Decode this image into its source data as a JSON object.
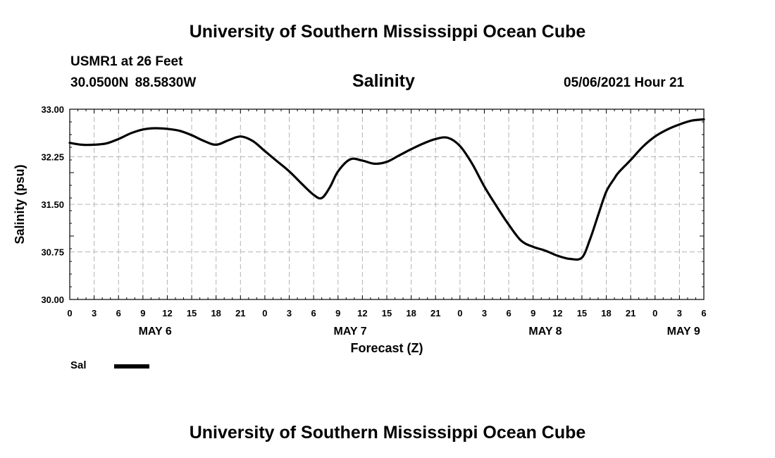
{
  "header": {
    "org_title": "University of Southern Mississippi Ocean Cube",
    "station": "USMR1 at 26 Feet",
    "coordinates": "30.0500N  88.5830W",
    "variable": "Salinity",
    "date": "05/06/2021 Hour 21"
  },
  "footer": {
    "org_title": "University of Southern Mississippi Ocean Cube"
  },
  "legend": {
    "label": "Sal",
    "color": "#000000"
  },
  "colors": {
    "grid": "#b4b4b4",
    "line": "#000000",
    "background": "#ffffff"
  },
  "chart_data": {
    "type": "line",
    "title": "Salinity",
    "xlabel": "Forecast (Z)",
    "ylabel": "Salinity (psu)",
    "ylim": [
      30.0,
      33.0
    ],
    "xlim": [
      0,
      78
    ],
    "yticks": [
      30.0,
      30.75,
      31.5,
      32.25,
      33.0
    ],
    "ytick_labels": [
      "30.00",
      "30.75",
      "31.50",
      "32.25",
      "33.00"
    ],
    "xticks": [
      0,
      3,
      6,
      9,
      12,
      15,
      18,
      21,
      24,
      27,
      30,
      33,
      36,
      39,
      42,
      45,
      48,
      51,
      54,
      57,
      60,
      63,
      66,
      69,
      72,
      75,
      78
    ],
    "xtick_labels": [
      "0",
      "3",
      "6",
      "9",
      "12",
      "15",
      "18",
      "21",
      "0",
      "3",
      "6",
      "9",
      "12",
      "15",
      "18",
      "21",
      "0",
      "3",
      "6",
      "9",
      "12",
      "15",
      "18",
      "21",
      "0",
      "3",
      "6"
    ],
    "day_labels": [
      {
        "hour": 10.5,
        "label": "MAY 6"
      },
      {
        "hour": 34.5,
        "label": "MAY 7"
      },
      {
        "hour": 58.5,
        "label": "MAY 8"
      },
      {
        "hour": 75.5,
        "label": "MAY 9"
      }
    ],
    "grid": true,
    "series": [
      {
        "name": "Sal",
        "x": [
          0,
          1.5,
          3,
          4.5,
          6,
          7.5,
          9,
          10.5,
          12,
          13.5,
          15,
          16.5,
          18,
          19.5,
          21,
          22.5,
          24,
          25.5,
          27,
          28.5,
          30,
          31,
          32,
          33,
          34.5,
          36,
          37.5,
          39,
          40.5,
          42,
          43.5,
          45,
          46.5,
          48,
          49.5,
          51,
          52.5,
          54,
          55.5,
          57,
          58.5,
          60,
          61.5,
          63,
          64,
          65,
          66,
          67,
          67.5,
          69,
          70.5,
          72,
          73.5,
          75,
          76.5,
          78
        ],
        "values": [
          32.47,
          32.44,
          32.44,
          32.46,
          32.53,
          32.62,
          32.68,
          32.7,
          32.69,
          32.66,
          32.59,
          32.5,
          32.44,
          32.51,
          32.57,
          32.5,
          32.34,
          32.18,
          32.02,
          31.83,
          31.65,
          31.6,
          31.77,
          32.02,
          32.21,
          32.19,
          32.14,
          32.17,
          32.27,
          32.37,
          32.46,
          32.53,
          32.55,
          32.42,
          32.14,
          31.78,
          31.47,
          31.18,
          30.93,
          30.83,
          30.77,
          30.69,
          30.64,
          30.66,
          30.95,
          31.33,
          31.7,
          31.91,
          32.0,
          32.2,
          32.41,
          32.57,
          32.68,
          32.76,
          32.82,
          32.84
        ]
      }
    ]
  }
}
